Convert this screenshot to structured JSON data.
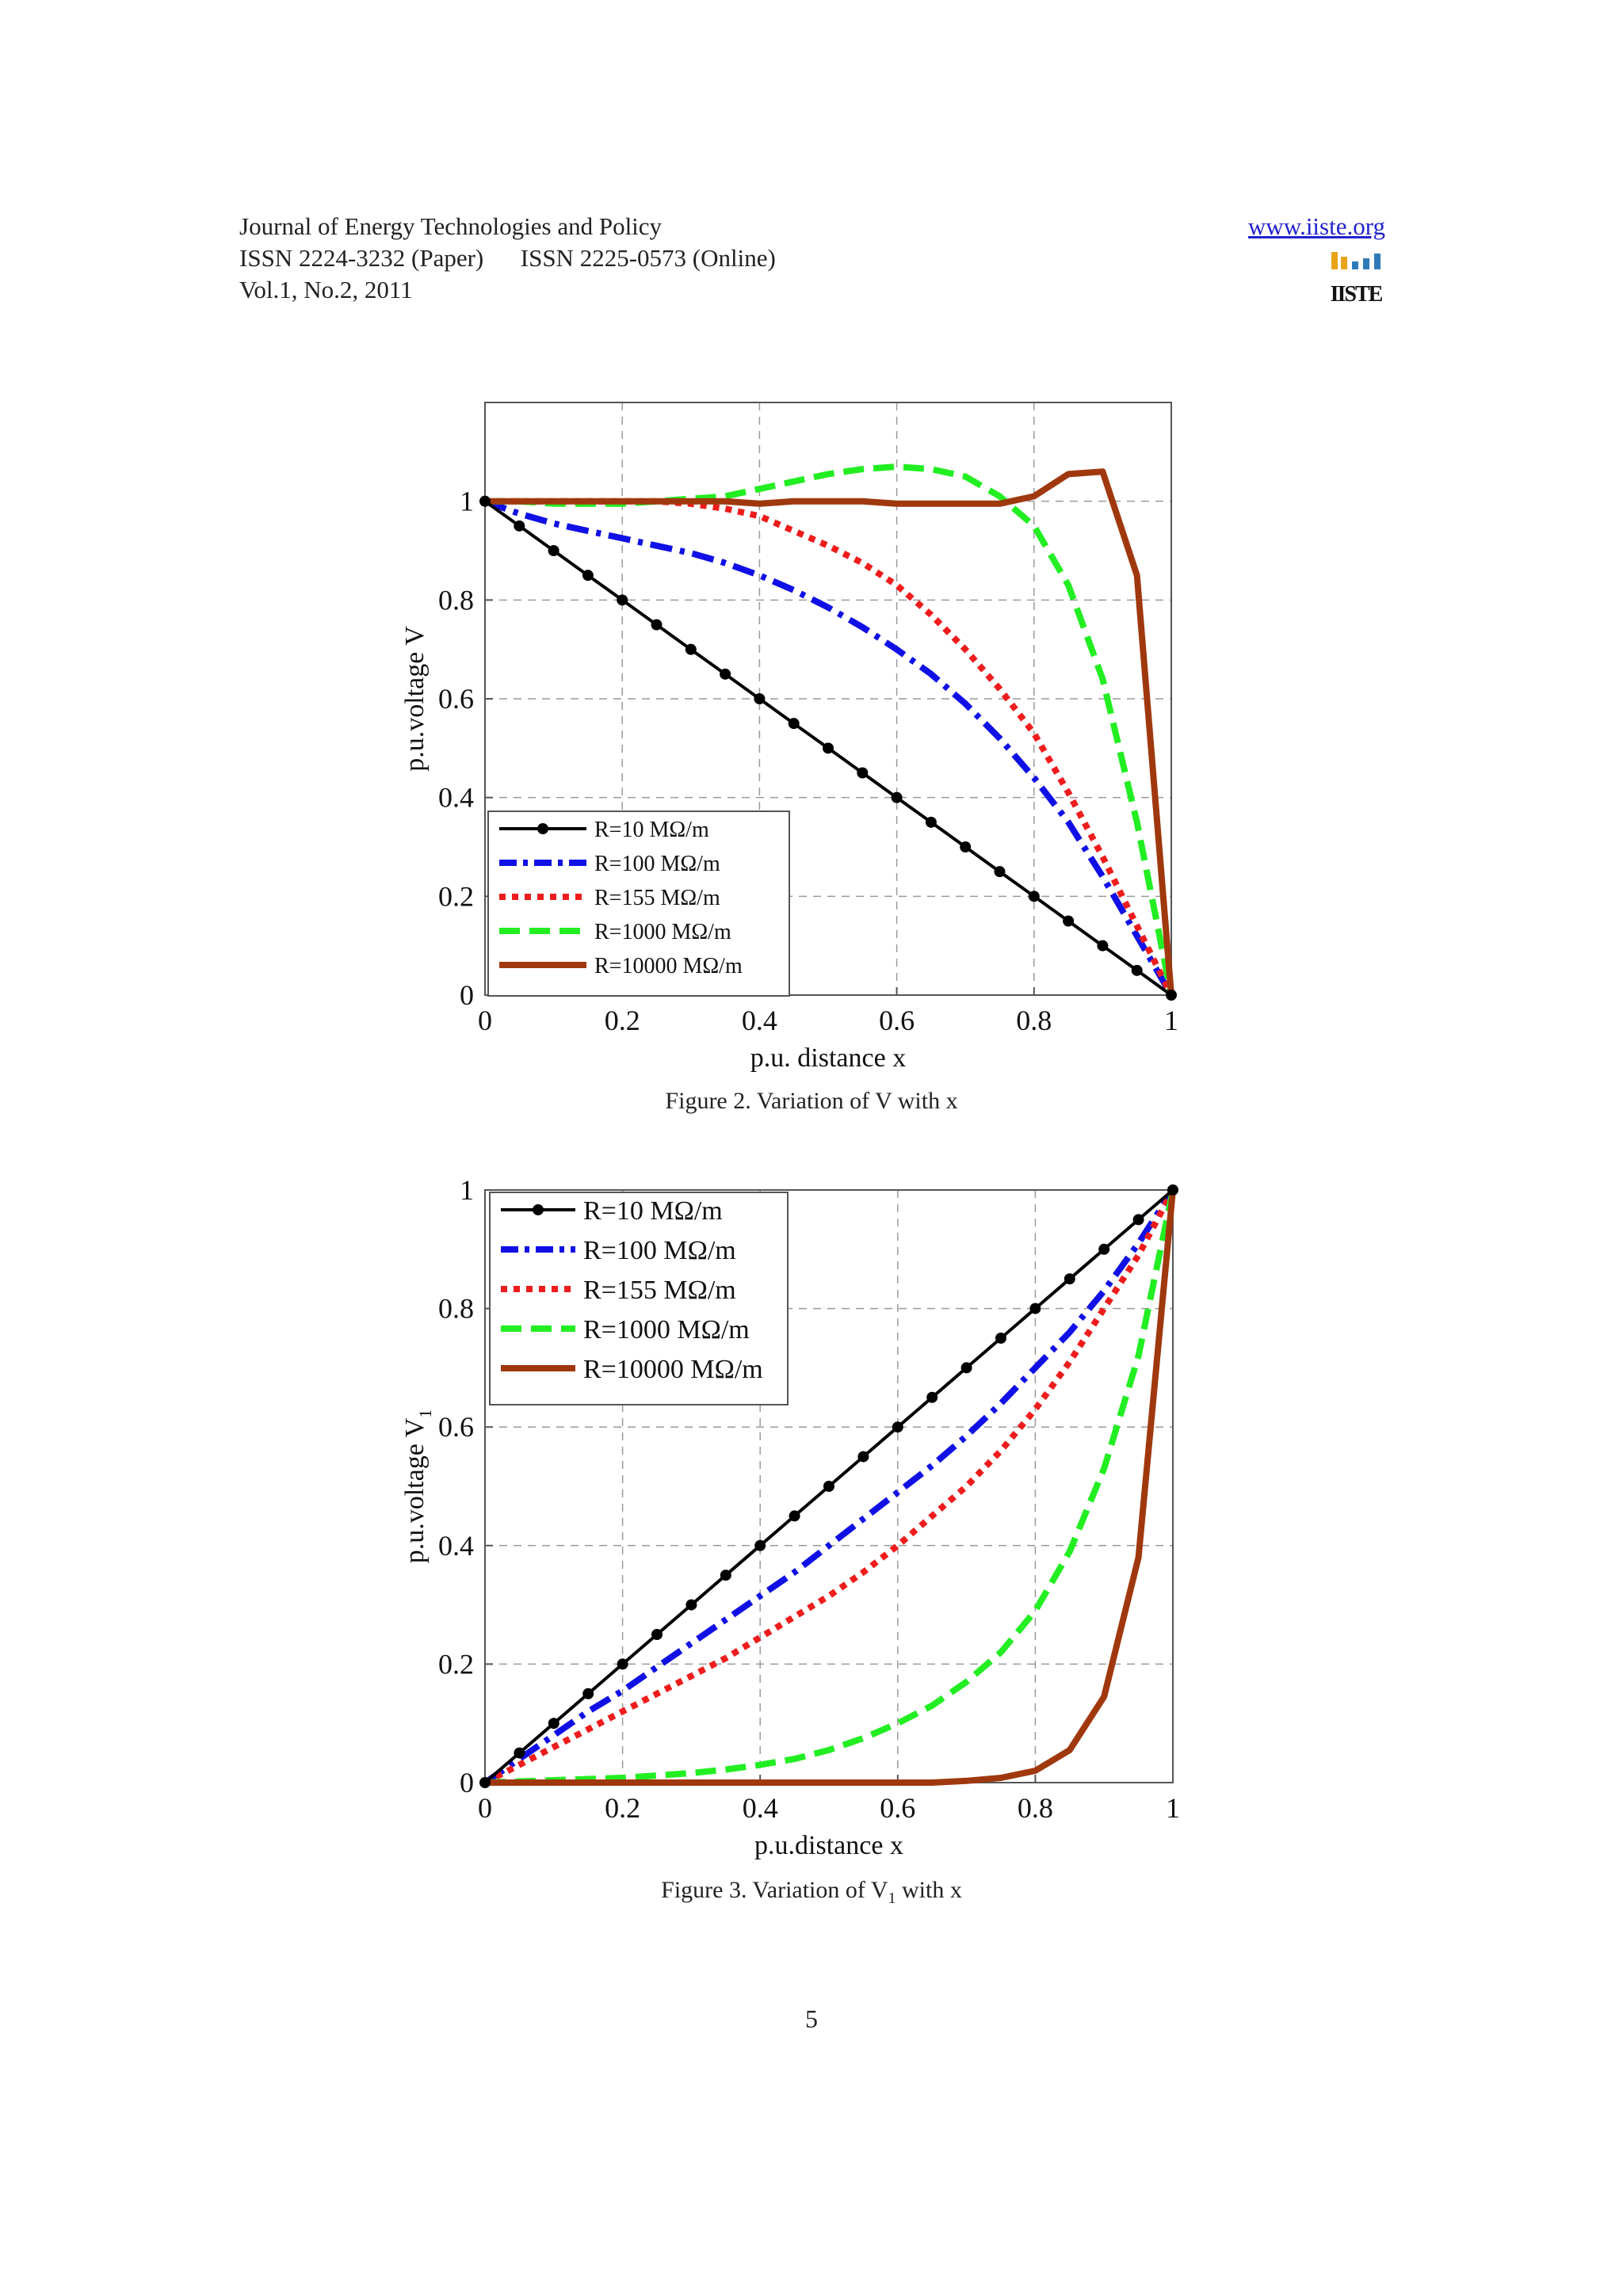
{
  "header": {
    "journal": "Journal of Energy Technologies and Policy",
    "issn_paper": "ISSN 2224-3232 (Paper)",
    "issn_online": "ISSN 2225-0573 (Online)",
    "volume": "Vol.1, No.2, 2011",
    "website": "www.iiste.org",
    "logo_text": "IISTE"
  },
  "captions": {
    "fig2": "Figure 2. Variation of V with x",
    "fig3_prefix": "Figure 3. Variation of V",
    "fig3_sub": "1",
    "fig3_suffix": " with x"
  },
  "page_number": "5",
  "series_styles": [
    {
      "name": "R=10 MΩ/m",
      "color": "#000000",
      "dash": "",
      "width": 4,
      "markers": true
    },
    {
      "name": "R=100 MΩ/m",
      "color": "#1010e6",
      "dash": "28,10,6,10",
      "width": 8,
      "markers": false
    },
    {
      "name": "R=155 MΩ/m",
      "color": "#ee1c1c",
      "dash": "8,8",
      "width": 8,
      "markers": false
    },
    {
      "name": "R=1000 MΩ/m",
      "color": "#22ee22",
      "dash": "26,12",
      "width": 8,
      "markers": false
    },
    {
      "name": "R=10000 MΩ/m",
      "color": "#a0380e",
      "dash": "",
      "width": 8,
      "markers": false
    }
  ],
  "chart_data": [
    {
      "type": "line",
      "title": "",
      "xlabel": "p.u. distance x",
      "ylabel": "p.u.voltage V",
      "xlim": [
        0,
        1
      ],
      "ylim": [
        0,
        1.2
      ],
      "xticks": [
        "0",
        "0.2",
        "0.4",
        "0.6",
        "0.8",
        "1"
      ],
      "yticks": [
        "0",
        "0.2",
        "0.4",
        "0.6",
        "0.8",
        "1"
      ],
      "grid": true,
      "legend": "bottom-left",
      "x": [
        0,
        0.05,
        0.1,
        0.15,
        0.2,
        0.25,
        0.3,
        0.35,
        0.4,
        0.45,
        0.5,
        0.55,
        0.6,
        0.65,
        0.7,
        0.75,
        0.8,
        0.85,
        0.9,
        0.95,
        1
      ],
      "series": [
        {
          "name": "R=10 MΩ/m",
          "values": [
            1,
            0.95,
            0.9,
            0.85,
            0.8,
            0.75,
            0.7,
            0.65,
            0.6,
            0.55,
            0.5,
            0.45,
            0.4,
            0.35,
            0.3,
            0.25,
            0.2,
            0.15,
            0.1,
            0.05,
            0
          ]
        },
        {
          "name": "R=100 MΩ/m",
          "values": [
            1,
            0.975,
            0.955,
            0.94,
            0.925,
            0.91,
            0.895,
            0.875,
            0.85,
            0.82,
            0.785,
            0.745,
            0.7,
            0.65,
            0.59,
            0.52,
            0.44,
            0.35,
            0.24,
            0.12,
            0
          ]
        },
        {
          "name": "R=155 MΩ/m",
          "values": [
            1,
            1.0,
            1.0,
            1.0,
            1.0,
            1.0,
            0.995,
            0.985,
            0.97,
            0.94,
            0.91,
            0.875,
            0.83,
            0.77,
            0.7,
            0.62,
            0.53,
            0.41,
            0.28,
            0.14,
            0
          ]
        },
        {
          "name": "R=1000 MΩ/m",
          "values": [
            1,
            1.0,
            0.995,
            0.995,
            0.995,
            1.0,
            1.005,
            1.01,
            1.025,
            1.04,
            1.055,
            1.065,
            1.07,
            1.065,
            1.05,
            1.01,
            0.95,
            0.83,
            0.64,
            0.35,
            0
          ]
        },
        {
          "name": "R=10000 MΩ/m",
          "values": [
            1,
            1,
            1,
            1,
            1,
            1,
            1,
            1,
            0.995,
            1,
            1,
            1,
            0.995,
            0.995,
            0.995,
            0.995,
            1.01,
            1.055,
            1.06,
            0.85,
            0
          ]
        }
      ]
    },
    {
      "type": "line",
      "title": "",
      "xlabel": "p.u.distance x",
      "ylabel": "p.u.voltage V",
      "ylabel_sub": "1",
      "xlim": [
        0,
        1
      ],
      "ylim": [
        0,
        1
      ],
      "xticks": [
        "0",
        "0.2",
        "0.4",
        "0.6",
        "0.8",
        "1"
      ],
      "yticks": [
        "0",
        "0.2",
        "0.4",
        "0.6",
        "0.8",
        "1"
      ],
      "grid": true,
      "legend": "top-left",
      "x": [
        0,
        0.05,
        0.1,
        0.15,
        0.2,
        0.25,
        0.3,
        0.35,
        0.4,
        0.45,
        0.5,
        0.55,
        0.6,
        0.65,
        0.7,
        0.75,
        0.8,
        0.85,
        0.9,
        0.95,
        1
      ],
      "series": [
        {
          "name": "R=10 MΩ/m",
          "values": [
            0,
            0.05,
            0.1,
            0.15,
            0.2,
            0.25,
            0.3,
            0.35,
            0.4,
            0.45,
            0.5,
            0.55,
            0.6,
            0.65,
            0.7,
            0.75,
            0.8,
            0.85,
            0.9,
            0.95,
            1
          ]
        },
        {
          "name": "R=100 MΩ/m",
          "values": [
            0,
            0.04,
            0.08,
            0.12,
            0.155,
            0.195,
            0.235,
            0.275,
            0.315,
            0.355,
            0.4,
            0.445,
            0.49,
            0.535,
            0.585,
            0.64,
            0.7,
            0.76,
            0.83,
            0.91,
            1
          ]
        },
        {
          "name": "R=155 MΩ/m",
          "values": [
            0,
            0.03,
            0.06,
            0.09,
            0.12,
            0.15,
            0.18,
            0.21,
            0.245,
            0.28,
            0.315,
            0.355,
            0.4,
            0.45,
            0.5,
            0.56,
            0.63,
            0.71,
            0.8,
            0.89,
            1
          ]
        },
        {
          "name": "R=1000 MΩ/m",
          "values": [
            0,
            0.002,
            0.004,
            0.006,
            0.008,
            0.012,
            0.016,
            0.022,
            0.03,
            0.04,
            0.055,
            0.075,
            0.1,
            0.13,
            0.17,
            0.22,
            0.29,
            0.39,
            0.53,
            0.72,
            1
          ]
        },
        {
          "name": "R=10000 MΩ/m",
          "values": [
            0,
            0,
            0,
            0,
            0,
            0,
            0,
            0,
            0,
            0,
            0,
            0,
            0,
            0,
            0.003,
            0.008,
            0.02,
            0.055,
            0.145,
            0.38,
            1
          ]
        }
      ]
    }
  ]
}
